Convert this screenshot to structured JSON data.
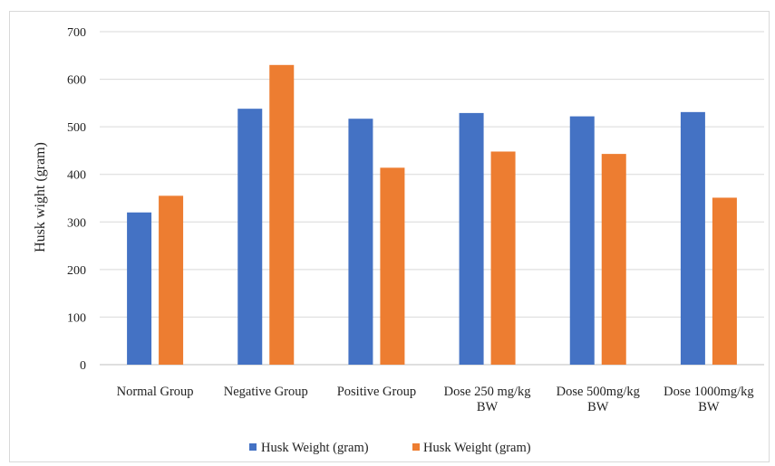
{
  "chart_data": {
    "type": "bar",
    "title": "",
    "xlabel": "",
    "ylabel": "Husk wight (gram)",
    "ylim": [
      0,
      700
    ],
    "yticks": [
      0,
      100,
      200,
      300,
      400,
      500,
      600,
      700
    ],
    "grid": true,
    "legend_position": "bottom",
    "categories": [
      [
        "Normal Group"
      ],
      [
        "Negative Group"
      ],
      [
        "Positive Group"
      ],
      [
        "Dose 250 mg/kg",
        "BW"
      ],
      [
        "Dose 500mg/kg",
        "BW"
      ],
      [
        "Dose 1000mg/kg",
        "BW"
      ]
    ],
    "series": [
      {
        "name": "Husk Weight (gram)",
        "color": "#4472C4",
        "values": [
          320,
          538,
          517,
          529,
          522,
          531
        ]
      },
      {
        "name": "Husk Weight (gram)",
        "color": "#ED7D31",
        "values": [
          355,
          630,
          414,
          448,
          443,
          351
        ]
      }
    ]
  }
}
